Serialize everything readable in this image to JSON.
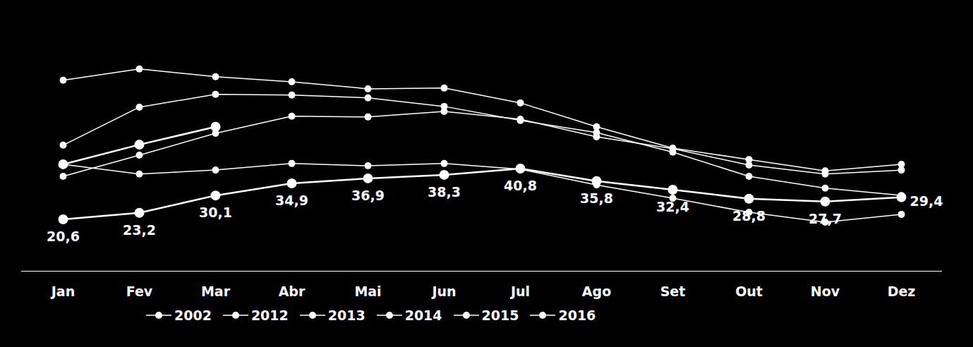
{
  "chart_data": {
    "type": "line",
    "categories": [
      "Jan",
      "Fev",
      "Mar",
      "Abr",
      "Mai",
      "Jun",
      "Jul",
      "Ago",
      "Set",
      "Out",
      "Nov",
      "Dez"
    ],
    "series": [
      {
        "name": "2002",
        "color": "#ffffff",
        "marker": "circle",
        "values": [
          37.7,
          46.1,
          54.8,
          61.6,
          61.3,
          63.5,
          60.4,
          53.4,
          48.7,
          42.2,
          38.6,
          40.2
        ]
      },
      {
        "name": "2012",
        "color": "#ffffff",
        "marker": "circle",
        "values": [
          75.9,
          80.4,
          77.3,
          75.3,
          72.5,
          72.8,
          66.9,
          57.4,
          48.9,
          44.4,
          39.9,
          42.5
        ]
      },
      {
        "name": "2013",
        "color": "#ffffff",
        "marker": "circle",
        "values": [
          50.1,
          65.2,
          70.3,
          70.0,
          68.9,
          65.5,
          59.9,
          55.1,
          47.3,
          37.7,
          33.0,
          30.1
        ]
      },
      {
        "name": "2014",
        "color": "#ffffff",
        "marker": "circle",
        "values": [
          42.5,
          38.6,
          40.2,
          42.8,
          41.9,
          42.8,
          40.5,
          34.3,
          29.0,
          23.4,
          19.5,
          22.6
        ]
      },
      {
        "name": "2015",
        "color": "#ffffff",
        "marker": "circle",
        "data_labels": true,
        "values": [
          20.6,
          23.2,
          30.1,
          34.9,
          36.9,
          38.3,
          40.8,
          35.8,
          32.4,
          28.8,
          27.7,
          29.4
        ],
        "value_labels": [
          "20,6",
          "23,2",
          "30,1",
          "34,9",
          "36,9",
          "38,3",
          "40,8",
          "35,8",
          "32,4",
          "28,8",
          "27,7",
          "29,4"
        ]
      },
      {
        "name": "2016",
        "color": "#ffffff",
        "marker": "circle",
        "values": [
          42.5,
          50.3,
          57.4,
          null,
          null,
          null,
          null,
          null,
          null,
          null,
          null,
          null
        ]
      }
    ],
    "ylim": [
      0,
      90
    ],
    "yticks": [],
    "tick_labels": "x",
    "grid": false,
    "legend": "bottom"
  }
}
